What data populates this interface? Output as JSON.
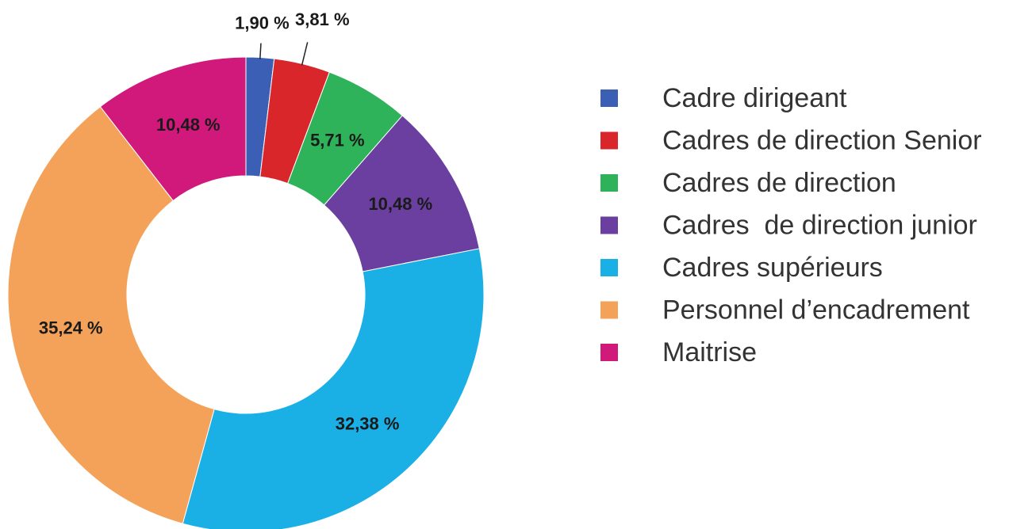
{
  "chart_data": {
    "type": "donut",
    "categories": [
      "Cadre dirigeant",
      "Cadres de direction Senior",
      "Cadres de direction",
      "Cadres  de direction junior",
      "Cadres supérieurs",
      "Personnel d’encadrement",
      "Maitrise"
    ],
    "values": [
      1.9,
      3.81,
      5.71,
      10.48,
      32.38,
      35.24,
      10.48
    ],
    "value_labels": [
      "1,90 %",
      "3,81 %",
      "5,71 %",
      "10,48 %",
      "32,38 %",
      "35,24 %",
      "10,48 %"
    ],
    "colors": [
      "#3a5fb5",
      "#d9262b",
      "#2fb35a",
      "#6a3fa0",
      "#1ab0e6",
      "#f4a259",
      "#d0197a"
    ],
    "legend": "right"
  }
}
